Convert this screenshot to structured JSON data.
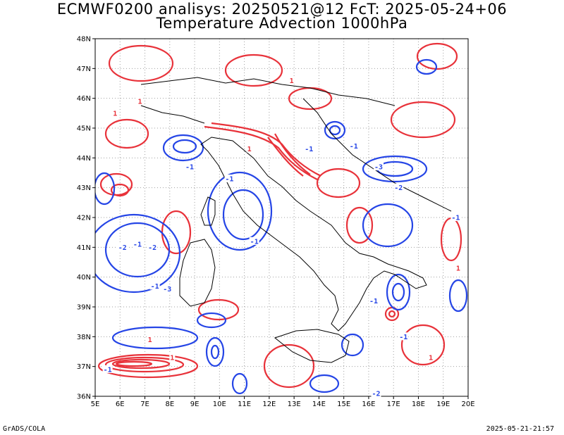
{
  "title_line1": "ECMWF0200 analisys: 20250521@12 FcT: 2025-05-24+06",
  "title_line2": "Temperature Advection 1000hPa",
  "footer_left": "GrADS/COLA",
  "footer_right": "2025-05-21-21:57",
  "map": {
    "lon_range": [
      5,
      20
    ],
    "lat_range": [
      36,
      48
    ],
    "lon_ticks": [
      "5E",
      "6E",
      "7E",
      "8E",
      "9E",
      "10E",
      "11E",
      "12E",
      "13E",
      "14E",
      "15E",
      "16E",
      "17E",
      "18E",
      "19E",
      "20E"
    ],
    "lat_ticks": [
      "36N",
      "37N",
      "38N",
      "39N",
      "40N",
      "41N",
      "42N",
      "43N",
      "44N",
      "45N",
      "46N",
      "47N",
      "48N"
    ],
    "grid": "dotted",
    "colors": {
      "warm_advection": "#e8323a",
      "cold_advection": "#2545e6",
      "coastline": "#000000",
      "grid": "#a0a0a0"
    },
    "contour_labels": [
      {
        "text": "-1",
        "lon": 5.5,
        "lat": 36.9,
        "sign": "neg"
      },
      {
        "text": "-2",
        "lon": 6.1,
        "lat": 41.0,
        "sign": "neg"
      },
      {
        "text": "-1",
        "lon": 6.7,
        "lat": 41.1,
        "sign": "neg"
      },
      {
        "text": "-2",
        "lon": 7.3,
        "lat": 41.0,
        "sign": "neg"
      },
      {
        "text": "-1",
        "lon": 7.4,
        "lat": 39.7,
        "sign": "neg"
      },
      {
        "text": "-3",
        "lon": 7.9,
        "lat": 39.6,
        "sign": "neg"
      },
      {
        "text": "-1",
        "lon": 8.8,
        "lat": 43.7,
        "sign": "neg"
      },
      {
        "text": "-1",
        "lon": 10.4,
        "lat": 43.3,
        "sign": "neg"
      },
      {
        "text": "-1",
        "lon": 11.4,
        "lat": 41.2,
        "sign": "neg"
      },
      {
        "text": "-1",
        "lon": 13.6,
        "lat": 44.3,
        "sign": "neg"
      },
      {
        "text": "-1",
        "lon": 15.4,
        "lat": 44.4,
        "sign": "neg"
      },
      {
        "text": "-3",
        "lon": 16.4,
        "lat": 43.7,
        "sign": "neg"
      },
      {
        "text": "-2",
        "lon": 17.2,
        "lat": 43.0,
        "sign": "neg"
      },
      {
        "text": "-1",
        "lon": 16.2,
        "lat": 39.2,
        "sign": "neg"
      },
      {
        "text": "-1",
        "lon": 17.4,
        "lat": 38.0,
        "sign": "neg"
      },
      {
        "text": "-1",
        "lon": 19.5,
        "lat": 42.0,
        "sign": "neg"
      },
      {
        "text": "-2",
        "lon": 16.3,
        "lat": 36.1,
        "sign": "neg"
      },
      {
        "text": "1",
        "lon": 5.8,
        "lat": 45.5,
        "sign": "pos"
      },
      {
        "text": "1",
        "lon": 6.8,
        "lat": 45.9,
        "sign": "pos"
      },
      {
        "text": "1",
        "lon": 7.2,
        "lat": 37.9,
        "sign": "pos"
      },
      {
        "text": "1",
        "lon": 8.1,
        "lat": 37.3,
        "sign": "pos"
      },
      {
        "text": "1",
        "lon": 11.2,
        "lat": 44.3,
        "sign": "pos"
      },
      {
        "text": "1",
        "lon": 12.9,
        "lat": 46.6,
        "sign": "pos"
      },
      {
        "text": "1",
        "lon": 18.5,
        "lat": 37.3,
        "sign": "pos"
      },
      {
        "text": "1",
        "lon": 19.6,
        "lat": 40.3,
        "sign": "pos"
      }
    ]
  }
}
